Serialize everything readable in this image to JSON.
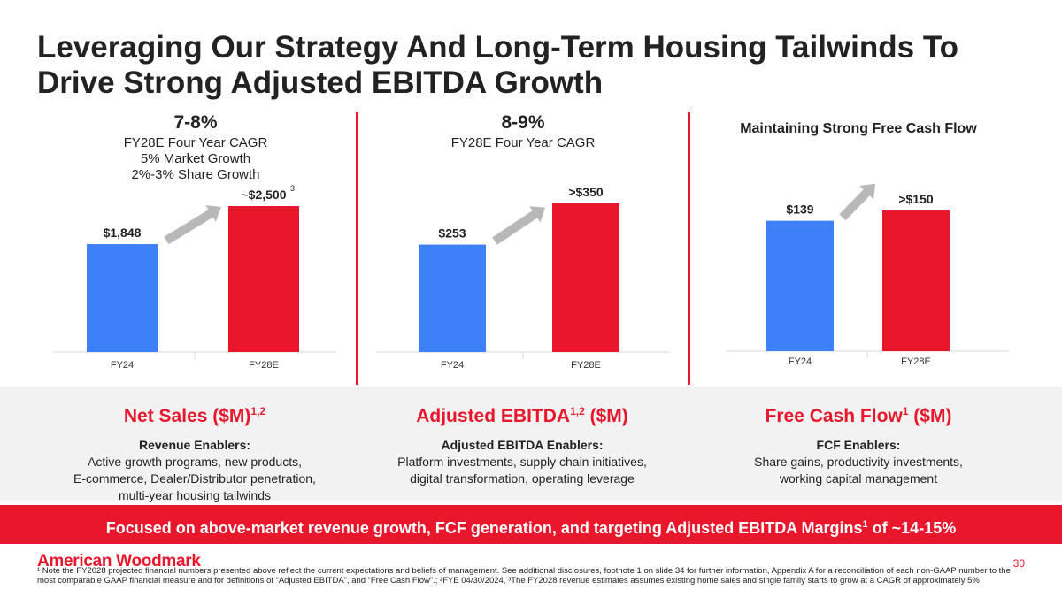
{
  "slide": {
    "title": "Leveraging Our Strategy And Long-Term Housing Tailwinds To Drive Strong Adjusted EBITDA Growth",
    "page_number": "30"
  },
  "panels": [
    {
      "headline": "7-8%",
      "lines": [
        "FY28E Four Year CAGR",
        "5% Market Growth",
        "2%-3% Share Growth"
      ]
    },
    {
      "headline": "8-9%",
      "lines": [
        "FY28E Four Year CAGR"
      ]
    },
    {
      "heading": "Maintaining Strong Free Cash Flow"
    }
  ],
  "chart_data": [
    {
      "type": "bar",
      "title": "Net Sales ($M)",
      "categories": [
        "FY24",
        "FY28E"
      ],
      "values": [
        1848,
        2500
      ],
      "labels": [
        "$1,848",
        "~$2,500"
      ],
      "label_note": "3",
      "colors": [
        "#3d80f7",
        "#e8172c"
      ]
    },
    {
      "type": "bar",
      "title": "Adjusted EBITDA ($M)",
      "categories": [
        "FY24",
        "FY28E"
      ],
      "values": [
        253,
        350
      ],
      "labels": [
        "$253",
        ">$350"
      ],
      "colors": [
        "#3d80f7",
        "#e8172c"
      ]
    },
    {
      "type": "bar",
      "title": "Free Cash Flow ($M)",
      "categories": [
        "FY24",
        "FY28E"
      ],
      "values": [
        139,
        150
      ],
      "labels": [
        "$139",
        ">$150"
      ],
      "colors": [
        "#3d80f7",
        "#e8172c"
      ]
    }
  ],
  "enablers": [
    {
      "title": "Net Sales ($M)",
      "sup": "1,2",
      "title_main": "Net Sales ($M)",
      "heading": "Revenue Enablers:",
      "lines": [
        "Active growth programs, new products,",
        "E-commerce, Dealer/Distributor penetration,",
        "multi-year housing tailwinds"
      ]
    },
    {
      "title_pre": "Adjusted EBITDA",
      "sup": "1,2",
      "title_post": " ($M)",
      "heading": "Adjusted EBITDA Enablers:",
      "lines": [
        "Platform investments, supply chain initiatives,",
        "digital transformation, operating leverage"
      ]
    },
    {
      "title_pre": "Free Cash Flow",
      "sup": "1",
      "title_post": " ($M)",
      "heading": "FCF Enablers:",
      "lines": [
        "Share gains, productivity investments,",
        "working capital management"
      ]
    }
  ],
  "banner": {
    "pre": "Focused on above-market revenue growth, FCF generation, and targeting Adjusted EBITDA Margins",
    "sup": "1",
    "post": " of ~14-15%"
  },
  "brand": {
    "logo_text": "American Woodmark"
  },
  "footnote": "¹ Note the FY2028 projected financial numbers presented above reflect the current expectations and beliefs of management. See additional disclosures, footnote 1 on slide 34 for further information, Appendix A for a reconciliation of each non-GAAP number to the most comparable GAAP financial measure and for definitions of “Adjusted EBITDA”, and “Free Cash Flow”.; ²FYE 04/30/2024, ³The FY2028 revenue estimates assumes existing home sales and single family starts to grow at a CAGR of approximately 5%",
  "colors": {
    "accent": "#e8172c",
    "fy24": "#3d80f7",
    "arrow": "#b8b8b8"
  }
}
